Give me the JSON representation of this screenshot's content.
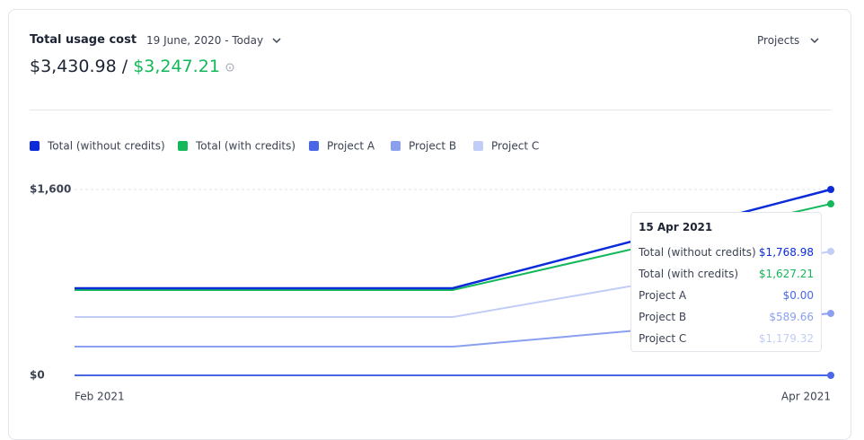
{
  "header": {
    "title": "Total usage cost",
    "date_range": "19 June, 2020 - Today",
    "total": "$3,430.98",
    "separator": "/",
    "total_with_credits": "$3,247.21",
    "filter": "Projects"
  },
  "chart_data": {
    "type": "line",
    "categories": [
      "Feb 2021",
      null,
      "Apr 2021"
    ],
    "series": [
      {
        "name": "Total (without credits)",
        "color": "#0b2bdb",
        "values": [
          750,
          750,
          1600
        ]
      },
      {
        "name": "Total (with credits)",
        "color": "#12b85a",
        "values": [
          734,
          734,
          1476
        ]
      },
      {
        "name": "Project A",
        "color": "#4a67e8",
        "values": [
          0,
          0,
          0
        ]
      },
      {
        "name": "Project B",
        "color": "#8aa0ee",
        "values": [
          247,
          247,
          533
        ]
      },
      {
        "name": "Project C",
        "color": "#c2cdf7",
        "values": [
          502,
          502,
          1067
        ]
      }
    ],
    "ylim": [
      0,
      1600
    ],
    "yticks": [
      {
        "value": 0,
        "label": "$0"
      },
      {
        "value": 1600,
        "label": "$1,600"
      }
    ],
    "grid": true,
    "legend": "top-left"
  },
  "tooltip": {
    "title": "15 Apr 2021",
    "rows": [
      {
        "label": "Total (without credits)",
        "value": "$1,768.98"
      },
      {
        "label": "Total (with credits)",
        "value": "$1,627.21"
      },
      {
        "label": "Project A",
        "value": "$0.00"
      },
      {
        "label": "Project B",
        "value": "$589.66"
      },
      {
        "label": "Project C",
        "value": "$1,179.32"
      }
    ]
  }
}
